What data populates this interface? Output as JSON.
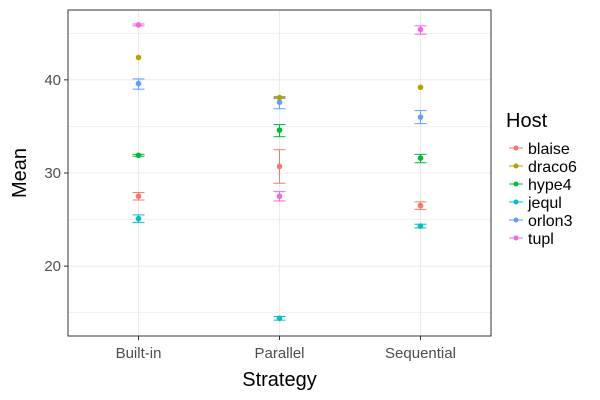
{
  "chart_data": {
    "type": "scatter",
    "xlabel": "Strategy",
    "ylabel": "Mean",
    "categories": [
      "Built-in",
      "Parallel",
      "Sequential"
    ],
    "ylim": [
      12.5,
      47.5
    ],
    "yticks": [
      20,
      30,
      40
    ],
    "grid": true,
    "legend": {
      "title": "Host",
      "position": "right"
    },
    "series": [
      {
        "name": "blaise",
        "color": "#F8766D",
        "values": [
          27.5,
          30.7,
          26.5
        ],
        "errors": [
          [
            27.1,
            27.9
          ],
          [
            28.9,
            32.5
          ],
          [
            26.1,
            26.9
          ]
        ]
      },
      {
        "name": "draco6",
        "color": "#B79F00",
        "values": [
          42.4,
          38.1,
          39.2
        ],
        "errors": [
          null,
          [
            38.0,
            38.2
          ],
          null
        ]
      },
      {
        "name": "hype4",
        "color": "#00BA38",
        "values": [
          31.9,
          34.6,
          31.6
        ],
        "errors": [
          [
            31.8,
            32.0
          ],
          [
            33.9,
            35.2
          ],
          [
            31.1,
            32.0
          ]
        ]
      },
      {
        "name": "jequl",
        "color": "#00BFC4",
        "values": [
          25.1,
          14.4,
          24.3
        ],
        "errors": [
          [
            24.7,
            25.5
          ],
          [
            14.2,
            14.6
          ],
          [
            24.1,
            24.5
          ]
        ]
      },
      {
        "name": "orlon3",
        "color": "#619CFF",
        "values": [
          39.6,
          37.6,
          36.0
        ],
        "errors": [
          [
            39.0,
            40.1
          ],
          [
            36.9,
            38.1
          ],
          [
            35.3,
            36.7
          ]
        ]
      },
      {
        "name": "tupl",
        "color": "#F564E3",
        "values": [
          45.9,
          27.5,
          45.4
        ],
        "errors": [
          [
            45.8,
            46.0
          ],
          [
            27.0,
            28.0
          ],
          [
            44.9,
            45.8
          ]
        ]
      }
    ]
  }
}
